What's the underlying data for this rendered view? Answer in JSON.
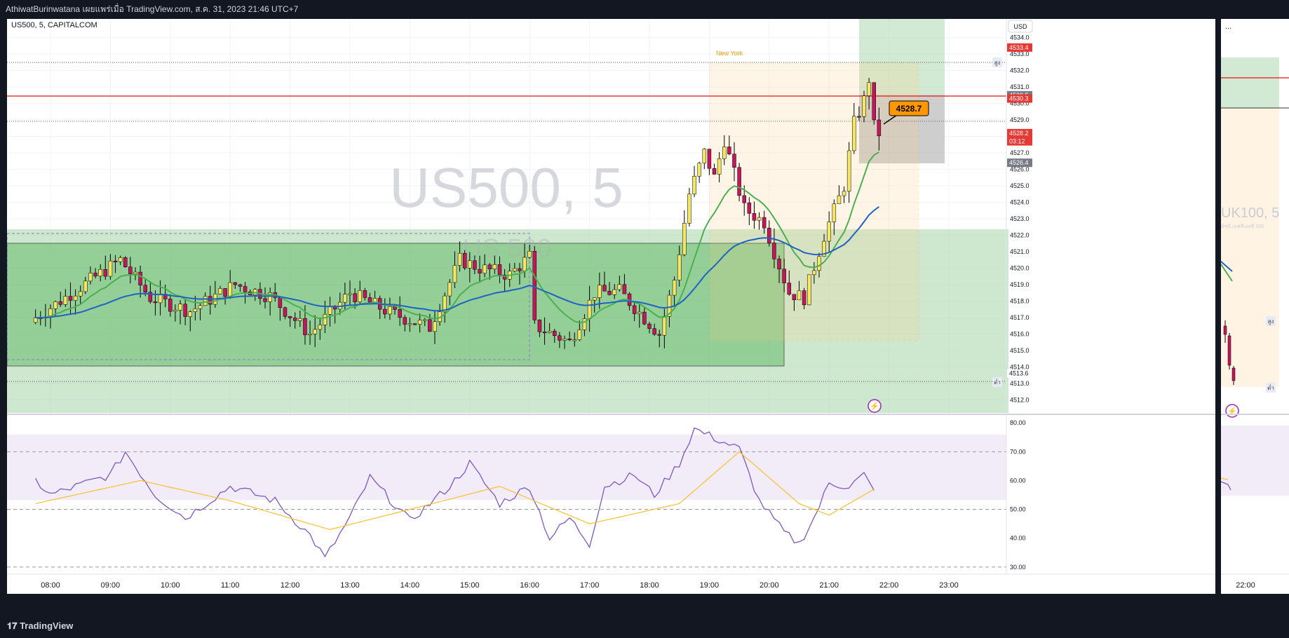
{
  "header": {
    "publisher_line": "AthiwatBurinwatana เผยแพร่เมื่อ TradingView.com, ส.ค. 31, 2023 21:46 UTC+7"
  },
  "chart": {
    "legend_symbol": "US500, 5, CAPITALCOM",
    "watermark": "US500, 5",
    "watermark_small": "US 500",
    "session_label": "New York",
    "currency_button": "USD",
    "marker_high_label": "สูง",
    "marker_low_label": "ต่ำ",
    "callout_value": "4528.7",
    "price_tags": [
      {
        "text": "4533.4",
        "kind": "red"
      },
      {
        "text": "4530.5",
        "kind": "gray"
      },
      {
        "text": "4530.3",
        "kind": "red"
      },
      {
        "text": "4528.2",
        "kind": "red"
      },
      {
        "text": "03:12",
        "kind": "red"
      },
      {
        "text": "4526.4",
        "kind": "gray"
      },
      {
        "text": "4513.6",
        "kind": "low"
      }
    ]
  },
  "side_panel": {
    "menu_label": "...",
    "watermark": "UK100, 5",
    "subtitle": "ดัชนี เอฟทีเอสอี 100",
    "marker_high_label": "สูง",
    "marker_low_label": "ต่ำ",
    "time_label": "22:00"
  },
  "footer": {
    "brand": "TradingView"
  },
  "colors": {
    "bull": "#f5e663",
    "bear": "#c2185b",
    "ema_fast": "#4caf50",
    "ema_slow": "#2962ff",
    "rsi": "#7e57c2",
    "rsi_ma": "#fbc02d",
    "resistance": "#e53935",
    "zone_green": "#81c784",
    "accent_orange": "#ff9800"
  },
  "chart_data": [
    {
      "type": "candlestick",
      "title": "US500, 5, CAPITALCOM",
      "ylim": [
        4511.5,
        4534.2
      ],
      "y_ticks": [
        "4534.0",
        "4533.0",
        "4532.0",
        "4531.0",
        "4530.0",
        "4529.0",
        "4528.0",
        "4527.0",
        "4526.0",
        "4525.0",
        "4524.0",
        "4523.0",
        "4522.0",
        "4521.0",
        "4520.0",
        "4519.0",
        "4518.0",
        "4517.0",
        "4516.0",
        "4515.0",
        "4514.0",
        "4513.0",
        "4512.0"
      ],
      "x_ticks": [
        "08:00",
        "09:00",
        "10:00",
        "11:00",
        "12:00",
        "13:00",
        "14:00",
        "15:00",
        "16:00",
        "17:00",
        "18:00",
        "19:00",
        "20:00",
        "21:00",
        "22:00",
        "23:00"
      ],
      "high_marker": 4532.4,
      "low_marker": 4513.6,
      "resistance_line": 4530.3,
      "dotted_level": 4528.9,
      "series": [
        {
          "name": "close",
          "key_points": [
            [
              "07:45",
              4517
            ],
            [
              "09:10",
              4520.5
            ],
            [
              "09:40",
              4518.2
            ],
            [
              "10:20",
              4517.4
            ],
            [
              "11:05",
              4519
            ],
            [
              "11:40",
              4518.3
            ],
            [
              "12:20",
              4516
            ],
            [
              "13:00",
              4518.5
            ],
            [
              "13:40",
              4517.3
            ],
            [
              "14:20",
              4516.4
            ],
            [
              "14:50",
              4520.5
            ],
            [
              "15:10",
              4520
            ],
            [
              "15:40",
              4519.6
            ],
            [
              "16:00",
              4520.7
            ],
            [
              "16:05",
              4516.5
            ],
            [
              "16:40",
              4515.5
            ],
            [
              "17:05",
              4518.5
            ],
            [
              "17:30",
              4518.6
            ],
            [
              "18:10",
              4516
            ],
            [
              "18:25",
              4519.3
            ],
            [
              "18:40",
              4524.5
            ],
            [
              "18:55",
              4527
            ],
            [
              "19:05",
              4525.5
            ],
            [
              "19:15",
              4527.8
            ],
            [
              "19:35",
              4523.6
            ],
            [
              "19:55",
              4522.8
            ],
            [
              "20:05",
              4521
            ],
            [
              "20:20",
              4518.5
            ],
            [
              "20:35",
              4518.2
            ],
            [
              "20:55",
              4522
            ],
            [
              "21:15",
              4525
            ],
            [
              "21:25",
              4528.8
            ],
            [
              "21:35",
              4530.2
            ],
            [
              "21:40",
              4531.5
            ],
            [
              "21:45",
              4528.6
            ],
            [
              "21:50",
              4528.2
            ]
          ]
        }
      ]
    },
    {
      "type": "line",
      "title": "RSI",
      "ylim": [
        28,
        82
      ],
      "y_ticks": [
        "80.00",
        "70.00",
        "60.00",
        "50.00",
        "40.00",
        "30.00"
      ],
      "series": [
        {
          "name": "RSI",
          "key_points": [
            [
              "07:45",
              60
            ],
            [
              "08:00",
              55
            ],
            [
              "09:00",
              62
            ],
            [
              "09:15",
              70
            ],
            [
              "09:45",
              55
            ],
            [
              "10:15",
              47
            ],
            [
              "11:00",
              58
            ],
            [
              "11:45",
              53
            ],
            [
              "12:20",
              41
            ],
            [
              "12:35",
              33
            ],
            [
              "13:00",
              47
            ],
            [
              "13:20",
              61
            ],
            [
              "14:00",
              46
            ],
            [
              "14:40",
              58
            ],
            [
              "15:00",
              66
            ],
            [
              "15:30",
              52
            ],
            [
              "16:00",
              58
            ],
            [
              "16:20",
              40
            ],
            [
              "16:40",
              47
            ],
            [
              "17:00",
              38
            ],
            [
              "17:15",
              58
            ],
            [
              "17:45",
              62
            ],
            [
              "18:05",
              55
            ],
            [
              "18:30",
              66
            ],
            [
              "18:45",
              78
            ],
            [
              "19:10",
              74
            ],
            [
              "19:30",
              71
            ],
            [
              "19:50",
              53
            ],
            [
              "20:15",
              42
            ],
            [
              "20:30",
              38
            ],
            [
              "20:45",
              47
            ],
            [
              "21:00",
              59
            ],
            [
              "21:20",
              58
            ],
            [
              "21:35",
              62
            ],
            [
              "21:45",
              56
            ]
          ]
        },
        {
          "name": "RSI MA",
          "key_points": [
            [
              "07:45",
              52
            ],
            [
              "09:30",
              60
            ],
            [
              "11:00",
              53
            ],
            [
              "12:40",
              43
            ],
            [
              "14:00",
              50
            ],
            [
              "15:30",
              58
            ],
            [
              "17:00",
              45
            ],
            [
              "18:30",
              52
            ],
            [
              "19:30",
              70
            ],
            [
              "20:30",
              52
            ],
            [
              "21:00",
              48
            ],
            [
              "21:45",
              57
            ]
          ]
        }
      ]
    }
  ]
}
